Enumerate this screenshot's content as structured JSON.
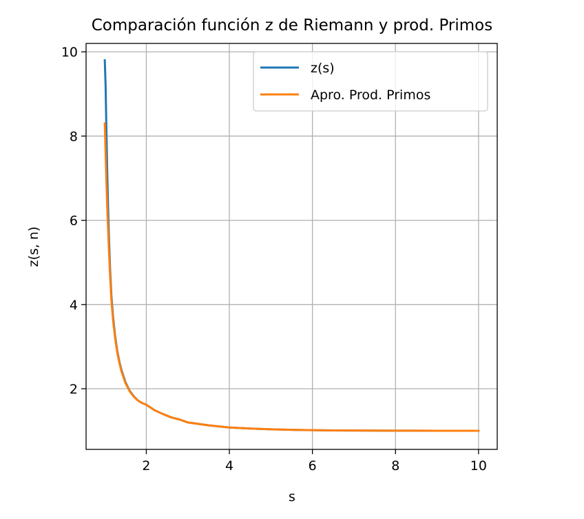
{
  "chart_data": {
    "type": "line",
    "title": "Comparación función z de Riemann y prod. Primos",
    "xlabel": "s",
    "ylabel": "z(s, n)",
    "xlim": [
      0.55,
      10.45
    ],
    "ylim": [
      0.56,
      10.2
    ],
    "xticks": [
      2,
      4,
      6,
      8,
      10
    ],
    "yticks": [
      2,
      4,
      6,
      8,
      10
    ],
    "grid": true,
    "legend": "upper-right",
    "series": [
      {
        "name": "z(s)",
        "color": "#1f77b4",
        "x": [
          1.0,
          1.02,
          1.04,
          1.06,
          1.08,
          1.1,
          1.13,
          1.16,
          1.2,
          1.25,
          1.3,
          1.35,
          1.4,
          1.5,
          1.6,
          1.7,
          1.8,
          1.9,
          2.0,
          2.2,
          2.4,
          2.6,
          2.8,
          3.0,
          3.5,
          4.0,
          4.5,
          5.0,
          5.5,
          6.0,
          6.5,
          7.0,
          7.5,
          8.0,
          8.5,
          9.0,
          9.5,
          10.0
        ],
        "values": [
          9.8,
          9.2,
          8.1,
          7.1,
          6.3,
          5.6,
          4.8,
          4.2,
          3.7,
          3.25,
          2.9,
          2.65,
          2.45,
          2.15,
          1.95,
          1.82,
          1.72,
          1.66,
          1.62,
          1.49,
          1.4,
          1.32,
          1.27,
          1.2,
          1.13,
          1.08,
          1.055,
          1.037,
          1.025,
          1.017,
          1.011,
          1.008,
          1.006,
          1.004,
          1.003,
          1.002,
          1.001,
          1.001
        ]
      },
      {
        "name": "Apro. Prod. Primos",
        "color": "#ff7f0e",
        "x": [
          1.0,
          1.02,
          1.04,
          1.06,
          1.08,
          1.1,
          1.13,
          1.16,
          1.2,
          1.25,
          1.3,
          1.35,
          1.4,
          1.5,
          1.6,
          1.7,
          1.8,
          1.9,
          2.0,
          2.2,
          2.4,
          2.6,
          2.8,
          3.0,
          3.5,
          4.0,
          4.5,
          5.0,
          5.5,
          6.0,
          6.5,
          7.0,
          7.5,
          8.0,
          8.5,
          9.0,
          9.5,
          10.0
        ],
        "values": [
          8.3,
          7.6,
          6.9,
          6.3,
          5.8,
          5.3,
          4.65,
          4.1,
          3.62,
          3.2,
          2.86,
          2.62,
          2.42,
          2.13,
          1.94,
          1.81,
          1.72,
          1.66,
          1.62,
          1.49,
          1.4,
          1.32,
          1.27,
          1.2,
          1.13,
          1.08,
          1.055,
          1.037,
          1.025,
          1.017,
          1.011,
          1.008,
          1.006,
          1.004,
          1.003,
          1.002,
          1.001,
          1.001
        ]
      }
    ]
  }
}
